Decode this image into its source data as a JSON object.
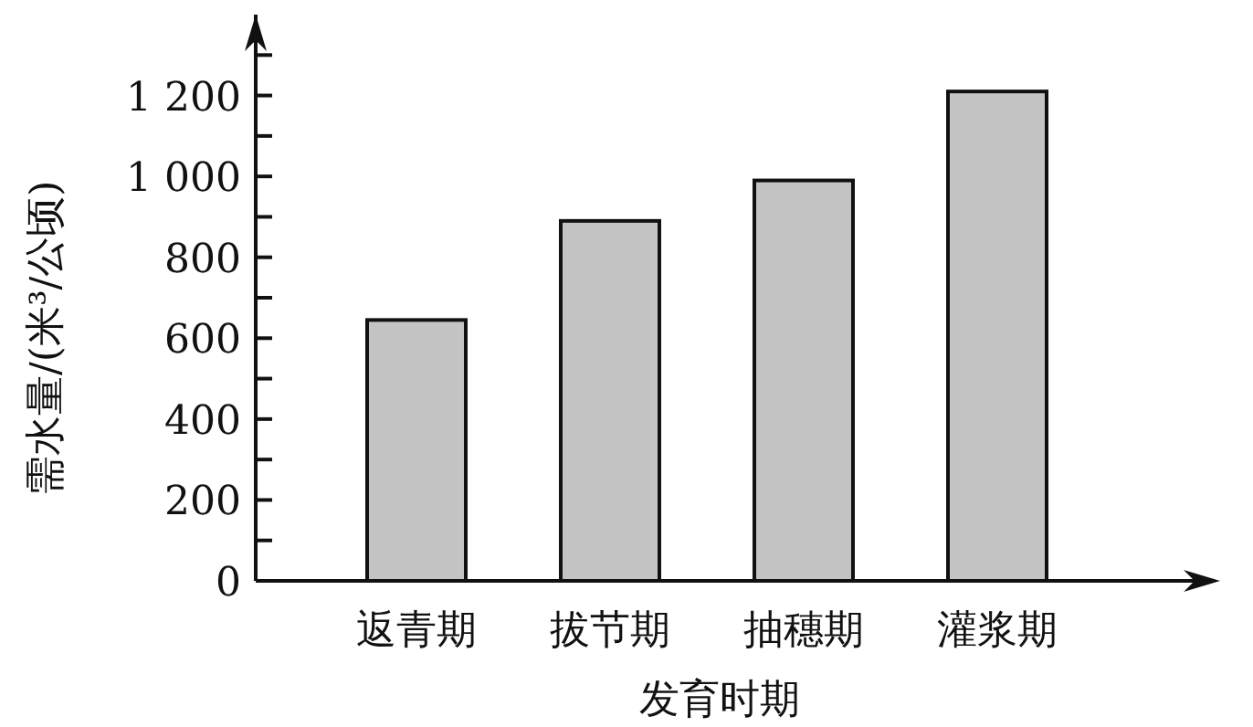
{
  "chart_data": {
    "type": "bar",
    "xlabel": "发育时期",
    "ylabel": "需水量/(米³/公顷)",
    "categories": [
      "返青期",
      "拔节期",
      "抽穗期",
      "灌浆期"
    ],
    "values": [
      645,
      890,
      990,
      1210
    ],
    "color": "#c4c4c4",
    "ylim": [
      0,
      1400
    ],
    "yticks": [
      0,
      {
        "value": 100,
        "label": null
      },
      200,
      {
        "value": 300,
        "label": null
      },
      400,
      {
        "value": 500,
        "label": null
      },
      600,
      {
        "value": 700,
        "label": null
      },
      800,
      {
        "value": 900,
        "label": null
      },
      {
        "value": 1000,
        "label": "1 000"
      },
      {
        "value": 1100,
        "label": null
      },
      {
        "value": 1200,
        "label": "1 200"
      },
      {
        "value": 1300,
        "label": null
      }
    ],
    "grid": false
  }
}
